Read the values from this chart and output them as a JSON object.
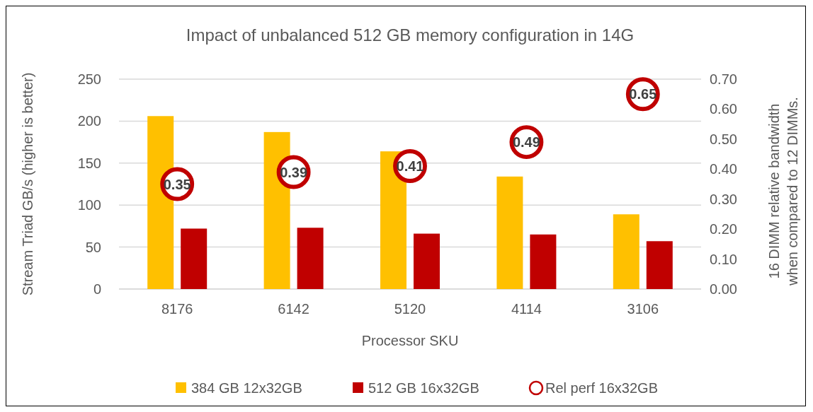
{
  "chart_data": {
    "type": "bar",
    "title": "Impact of unbalanced 512 GB memory configuration in 14G",
    "xlabel": "Processor SKU",
    "ylabel": "Stream Triad GB/s (higher is better)",
    "y2label": "16 DIMM relative bandwidth when compared to 12 DIMMs.",
    "categories": [
      "8176",
      "6142",
      "5120",
      "4114",
      "3106"
    ],
    "series": [
      {
        "name": "384 GB 12x32GB",
        "color": "#ffc000",
        "values": [
          206,
          187,
          164,
          134,
          89
        ]
      },
      {
        "name": "512 GB 16x32GB",
        "color": "#c00000",
        "values": [
          72,
          73,
          66,
          65,
          57
        ]
      },
      {
        "name": "Rel perf 16x32GB",
        "type": "scatter",
        "axis": "y2",
        "color": "#c00000",
        "values": [
          0.35,
          0.39,
          0.41,
          0.49,
          0.65
        ],
        "value_labels": [
          "0.35",
          "0.39",
          "0.41",
          "0.49",
          "0.65"
        ]
      }
    ],
    "ylim": [
      0,
      250
    ],
    "yticks": [
      0,
      50,
      100,
      150,
      200,
      250
    ],
    "y2lim": [
      0,
      0.7
    ],
    "y2ticks": [
      {
        "value": 0,
        "label": "0.00"
      },
      {
        "value": 0.1,
        "label": "0.10"
      },
      {
        "value": 0.2,
        "label": "0.20"
      },
      {
        "value": 0.3,
        "label": "0.30"
      },
      {
        "value": 0.4,
        "label": "0.40"
      },
      {
        "value": 0.5,
        "label": "0.50"
      },
      {
        "value": 0.6,
        "label": "0.60"
      },
      {
        "value": 0.7,
        "label": "0.70"
      }
    ],
    "grid": "y",
    "legend": "bottom",
    "marker": "circle"
  }
}
